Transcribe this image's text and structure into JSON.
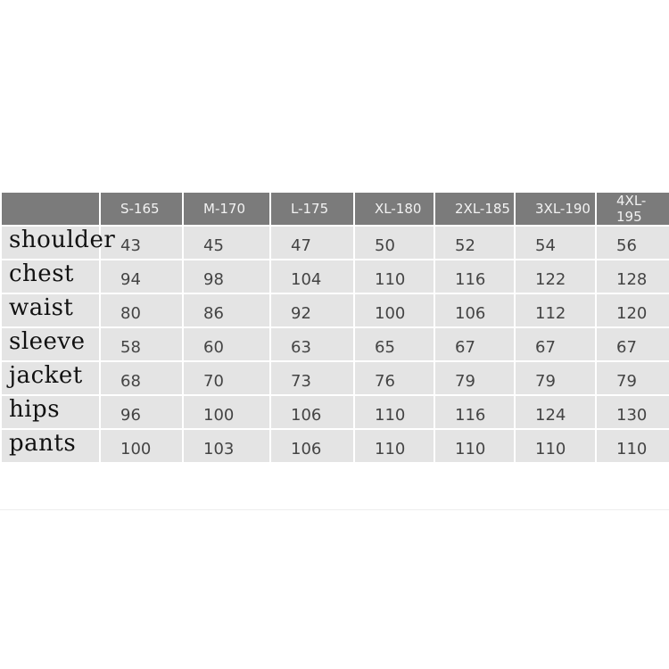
{
  "sizes": [
    "S-165",
    "M-170",
    "L-175",
    "XL-180",
    "2XL-185",
    "3XL-190",
    "4XL-195"
  ],
  "rows": [
    {
      "label": "shoulder",
      "values": [
        "43",
        "45",
        "47",
        "50",
        "52",
        "54",
        "56"
      ]
    },
    {
      "label": "chest",
      "values": [
        "94",
        "98",
        "104",
        "110",
        "116",
        "122",
        "128"
      ]
    },
    {
      "label": "waist",
      "values": [
        "80",
        "86",
        "92",
        "100",
        "106",
        "112",
        "120"
      ]
    },
    {
      "label": "sleeve",
      "values": [
        "58",
        "60",
        "63",
        "65",
        "67",
        "67",
        "67"
      ]
    },
    {
      "label": "jacket",
      "values": [
        "68",
        "70",
        "73",
        "76",
        "79",
        "79",
        "79"
      ]
    },
    {
      "label": "hips",
      "values": [
        "96",
        "100",
        "106",
        "110",
        "116",
        "124",
        "130"
      ]
    },
    {
      "label": "pants",
      "values": [
        "100",
        "103",
        "106",
        "110",
        "110",
        "110",
        "110"
      ]
    }
  ],
  "colors": {
    "header_bg": "#7b7b7b",
    "cell_bg": "#e4e4e4"
  }
}
